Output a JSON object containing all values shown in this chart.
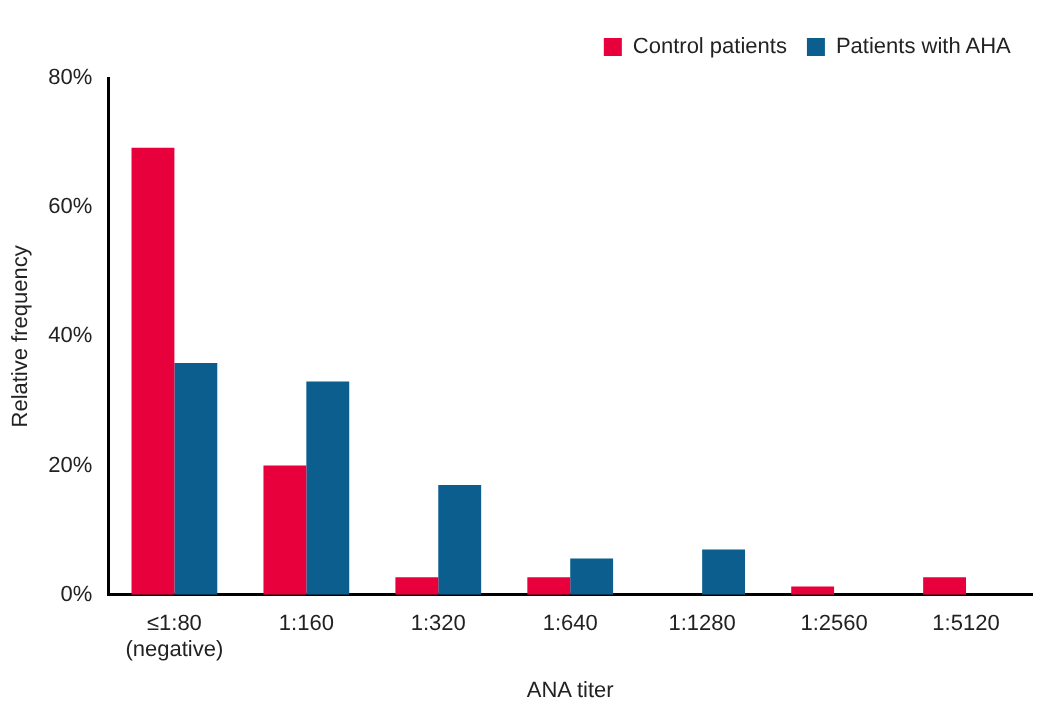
{
  "chart_data": {
    "type": "bar",
    "xlabel": "ANA titer",
    "ylabel": "Relative frequency",
    "categories": [
      "≤1:80\n(negative)",
      "1:160",
      "1:320",
      "1:640",
      "1:1280",
      "1:2560",
      "1:5120"
    ],
    "series": [
      {
        "name": "Control patients",
        "color": "#e8003c",
        "values": [
          69.2,
          20,
          2.7,
          2.7,
          0,
          1.3,
          2.7
        ]
      },
      {
        "name": "Patients with AHA",
        "color": "#0b5e8e",
        "values": [
          35.9,
          33,
          17,
          5.6,
          7,
          0,
          0
        ]
      }
    ],
    "ylim": [
      0,
      80
    ],
    "yticks": [
      {
        "value": 0,
        "label": "0%"
      },
      {
        "value": 20,
        "label": "20%"
      },
      {
        "value": 40,
        "label": "40%"
      },
      {
        "value": 60,
        "label": "60%"
      },
      {
        "value": 80,
        "label": "80%"
      }
    ],
    "grid": false,
    "legend": "top right"
  }
}
